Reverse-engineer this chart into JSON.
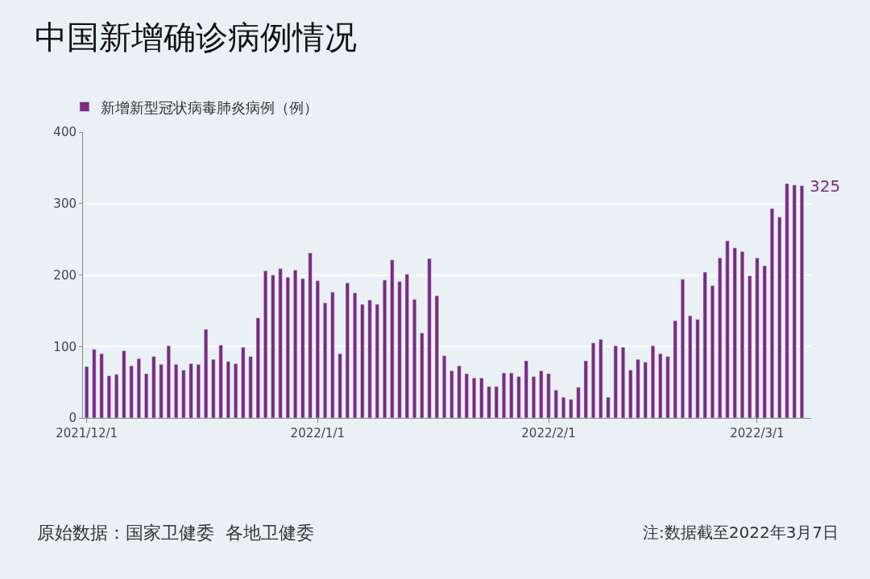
{
  "chart_data": {
    "type": "bar",
    "title": "中国新增确诊病例情况",
    "x": [
      "2021-12-01",
      "2021-12-02",
      "2021-12-03",
      "2021-12-04",
      "2021-12-05",
      "2021-12-06",
      "2021-12-07",
      "2021-12-08",
      "2021-12-09",
      "2021-12-10",
      "2021-12-11",
      "2021-12-12",
      "2021-12-13",
      "2021-12-14",
      "2021-12-15",
      "2021-12-16",
      "2021-12-17",
      "2021-12-18",
      "2021-12-19",
      "2021-12-20",
      "2021-12-21",
      "2021-12-22",
      "2021-12-23",
      "2021-12-24",
      "2021-12-25",
      "2021-12-26",
      "2021-12-27",
      "2021-12-28",
      "2021-12-29",
      "2021-12-30",
      "2021-12-31",
      "2022-01-01",
      "2022-01-02",
      "2022-01-03",
      "2022-01-04",
      "2022-01-05",
      "2022-01-06",
      "2022-01-07",
      "2022-01-08",
      "2022-01-09",
      "2022-01-10",
      "2022-01-11",
      "2022-01-12",
      "2022-01-13",
      "2022-01-14",
      "2022-01-15",
      "2022-01-16",
      "2022-01-17",
      "2022-01-18",
      "2022-01-19",
      "2022-01-20",
      "2022-01-21",
      "2022-01-22",
      "2022-01-23",
      "2022-01-24",
      "2022-01-25",
      "2022-01-26",
      "2022-01-27",
      "2022-01-28",
      "2022-01-29",
      "2022-01-30",
      "2022-01-31",
      "2022-02-01",
      "2022-02-02",
      "2022-02-03",
      "2022-02-04",
      "2022-02-05",
      "2022-02-06",
      "2022-02-07",
      "2022-02-08",
      "2022-02-09",
      "2022-02-10",
      "2022-02-11",
      "2022-02-12",
      "2022-02-13",
      "2022-02-14",
      "2022-02-15",
      "2022-02-16",
      "2022-02-17",
      "2022-02-18",
      "2022-02-19",
      "2022-02-20",
      "2022-02-21",
      "2022-02-22",
      "2022-02-23",
      "2022-02-24",
      "2022-02-25",
      "2022-02-26",
      "2022-02-27",
      "2022-02-28",
      "2022-03-01",
      "2022-03-02",
      "2022-03-03",
      "2022-03-04",
      "2022-03-05",
      "2022-03-06",
      "2022-03-07"
    ],
    "series": [
      {
        "name": "新增新型冠状病毒肺炎病例（例）",
        "color": "#7b2a84",
        "values": [
          72,
          96,
          90,
          59,
          61,
          94,
          73,
          83,
          62,
          86,
          75,
          101,
          75,
          67,
          76,
          75,
          124,
          82,
          102,
          79,
          76,
          99,
          86,
          140,
          206,
          200,
          209,
          197,
          207,
          195,
          231,
          192,
          161,
          176,
          90,
          189,
          175,
          159,
          165,
          159,
          193,
          221,
          191,
          201,
          166,
          119,
          223,
          171,
          87,
          66,
          73,
          62,
          56,
          56,
          44,
          44,
          63,
          63,
          58,
          80,
          58,
          66,
          62,
          39,
          29,
          26,
          43,
          80,
          105,
          110,
          29,
          101,
          99,
          67,
          82,
          78,
          101,
          90,
          86,
          136,
          194,
          143,
          138,
          204,
          185,
          224,
          248,
          238,
          233,
          199,
          224,
          213,
          293,
          281,
          328,
          326,
          325
        ]
      }
    ],
    "xlim": [
      "2021-11-30T12:00",
      "2022-03-08T06:00"
    ],
    "xticks": [
      {
        "value": "2021-12-01",
        "label": "2021/12/1"
      },
      {
        "value": "2022-01-01",
        "label": "2022/1/1"
      },
      {
        "value": "2022-02-01",
        "label": "2022/2/1"
      },
      {
        "value": "2022-03-01",
        "label": "2022/3/1"
      }
    ],
    "ylim": [
      0,
      400
    ],
    "yticks": [
      0,
      100,
      200,
      300,
      400
    ],
    "grid": "y",
    "legend": "top left",
    "annotations": [
      {
        "text": "325",
        "x": "2022-03-07",
        "y": 325
      },
      "原始数据：国家卫健委  各地卫健委",
      "注:数据截至2022年3月7日"
    ]
  }
}
